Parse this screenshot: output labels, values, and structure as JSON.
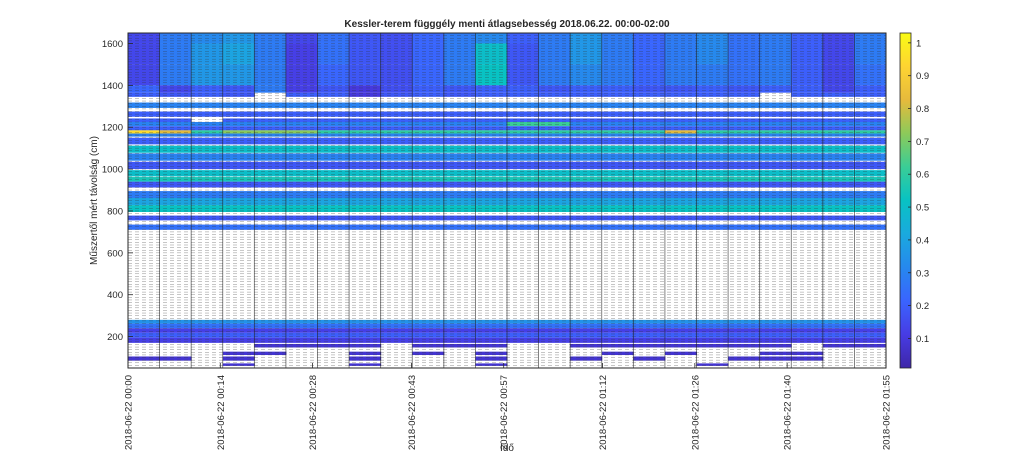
{
  "chart_data": {
    "type": "heatmap",
    "title": "Kessler-terem függgély menti átlagsebesség 2018.06.22. 00:00-02:00",
    "xlabel": "Idő",
    "ylabel": "Műszertől mért távolság (cm)",
    "x_tick_labels": [
      "2018-06-22 00:00",
      "2018-06-22 00:14",
      "2018-06-22 00:28",
      "2018-06-22 00:43",
      "2018-06-22 00:57",
      "2018-06-22 01:12",
      "2018-06-22 01:26",
      "2018-06-22 01:40",
      "2018-06-22 01:55"
    ],
    "x_tick_minutes": [
      0,
      14,
      28,
      43,
      57,
      72,
      86,
      100,
      115
    ],
    "xlim_minutes": [
      0,
      115
    ],
    "y_ticks": [
      200,
      400,
      600,
      800,
      1000,
      1200,
      1400,
      1600
    ],
    "ylim": [
      50,
      1650
    ],
    "colorbar": {
      "ticks": [
        0.1,
        0.2,
        0.3,
        0.4,
        0.5,
        0.6,
        0.7,
        0.8,
        0.9,
        1
      ],
      "range": [
        0.01,
        1.03
      ],
      "colormap": "parula"
    },
    "grid": true,
    "time_columns": 24,
    "rows": [
      {
        "y": [
          1600,
          1650
        ],
        "values": [
          0.14,
          0.28,
          0.32,
          0.36,
          0.28,
          0.14,
          0.25,
          0.18,
          0.16,
          0.22,
          0.28,
          0.32,
          0.2,
          0.28,
          0.36,
          0.28,
          0.22,
          0.28,
          0.32,
          0.25,
          0.28,
          0.2,
          0.14,
          0.28
        ]
      },
      {
        "y": [
          1500,
          1600
        ],
        "values": [
          0.14,
          0.28,
          0.36,
          0.4,
          0.28,
          0.12,
          0.25,
          0.18,
          0.16,
          0.22,
          0.28,
          0.5,
          0.18,
          0.28,
          0.36,
          0.28,
          0.22,
          0.28,
          0.32,
          0.25,
          0.28,
          0.2,
          0.14,
          0.28
        ]
      },
      {
        "y": [
          1400,
          1500
        ],
        "values": [
          0.14,
          0.28,
          0.36,
          0.36,
          0.28,
          0.12,
          0.22,
          0.18,
          0.16,
          0.22,
          0.28,
          0.52,
          0.18,
          0.28,
          0.32,
          0.28,
          0.22,
          0.28,
          0.28,
          0.25,
          0.28,
          0.2,
          0.14,
          0.25
        ]
      },
      {
        "y": [
          1365,
          1400
        ],
        "values": [
          0.22,
          0.14,
          0.2,
          0.18,
          0.28,
          0.12,
          0.18,
          0.1,
          0.16,
          0.2,
          0.18,
          0.2,
          0.2,
          0.18,
          0.2,
          0.2,
          0.18,
          0.18,
          0.2,
          0.18,
          0.2,
          0.2,
          0.14,
          0.2
        ]
      },
      {
        "y": [
          1345,
          1365
        ],
        "values": [
          0.2,
          0.18,
          0.2,
          0.18,
          null,
          0.2,
          0.2,
          0.1,
          0.18,
          0.2,
          0.18,
          0.2,
          0.2,
          0.2,
          0.2,
          0.2,
          0.2,
          0.2,
          0.2,
          0.2,
          null,
          0.2,
          0.2,
          0.2
        ]
      },
      {
        "y": [
          1292,
          1318
        ],
        "values": [
          0.3,
          0.3,
          0.3,
          0.3,
          0.3,
          0.3,
          0.3,
          0.3,
          0.3,
          0.3,
          0.3,
          0.3,
          0.3,
          0.3,
          0.3,
          0.3,
          0.3,
          0.3,
          0.3,
          0.3,
          0.3,
          0.3,
          0.3,
          0.3
        ]
      },
      {
        "y": [
          1250,
          1275
        ],
        "values": [
          0.2,
          0.2,
          0.2,
          0.2,
          0.2,
          0.2,
          0.2,
          0.2,
          0.2,
          0.2,
          0.2,
          0.2,
          0.2,
          0.2,
          0.2,
          0.2,
          0.2,
          0.2,
          0.2,
          0.2,
          0.2,
          0.2,
          0.2,
          0.2
        ]
      },
      {
        "y": [
          1225,
          1242
        ],
        "values": [
          0.2,
          0.2,
          null,
          0.2,
          0.2,
          0.2,
          0.2,
          0.2,
          0.2,
          0.2,
          0.2,
          0.2,
          0.2,
          0.2,
          0.2,
          0.2,
          0.2,
          0.2,
          0.2,
          0.2,
          0.2,
          0.2,
          0.2,
          0.2
        ]
      },
      {
        "y": [
          1205,
          1225
        ],
        "values": [
          0.3,
          0.3,
          0.3,
          0.3,
          0.3,
          0.3,
          0.3,
          0.3,
          0.3,
          0.3,
          0.3,
          0.3,
          0.62,
          0.62,
          0.3,
          0.3,
          0.3,
          0.3,
          0.3,
          0.3,
          0.3,
          0.3,
          0.3,
          0.3
        ]
      },
      {
        "y": [
          1185,
          1205
        ],
        "values": [
          0.2,
          0.2,
          0.2,
          0.2,
          0.2,
          0.2,
          0.2,
          0.2,
          0.2,
          0.2,
          0.2,
          0.2,
          0.2,
          0.2,
          0.2,
          0.2,
          0.2,
          0.2,
          0.2,
          0.2,
          0.2,
          0.2,
          0.2,
          0.2
        ]
      },
      {
        "y": [
          1170,
          1185
        ],
        "values": [
          0.95,
          0.82,
          0.6,
          0.72,
          0.72,
          0.72,
          0.6,
          0.6,
          0.6,
          0.6,
          0.6,
          0.6,
          0.6,
          0.6,
          0.6,
          0.6,
          0.6,
          0.82,
          0.6,
          0.6,
          0.6,
          0.6,
          0.6,
          0.6
        ]
      },
      {
        "y": [
          1155,
          1170
        ],
        "values": [
          0.3,
          0.3,
          0.3,
          0.3,
          0.3,
          0.3,
          0.3,
          0.3,
          0.3,
          0.3,
          0.3,
          0.3,
          0.3,
          0.3,
          0.3,
          0.3,
          0.3,
          0.3,
          0.3,
          0.3,
          0.3,
          0.3,
          0.3,
          0.3
        ]
      },
      {
        "y": [
          1118,
          1150
        ],
        "values": [
          0.2,
          0.2,
          0.2,
          0.2,
          0.2,
          0.2,
          0.2,
          0.2,
          0.2,
          0.2,
          0.2,
          0.2,
          0.2,
          0.2,
          0.2,
          0.2,
          0.2,
          0.2,
          0.2,
          0.2,
          0.2,
          0.2,
          0.2,
          0.2
        ]
      },
      {
        "y": [
          1078,
          1112
        ],
        "values": [
          0.5,
          0.5,
          0.5,
          0.5,
          0.5,
          0.5,
          0.5,
          0.5,
          0.5,
          0.5,
          0.5,
          0.5,
          0.5,
          0.5,
          0.5,
          0.5,
          0.5,
          0.5,
          0.5,
          0.5,
          0.5,
          0.5,
          0.5,
          0.5
        ]
      },
      {
        "y": [
          1040,
          1075
        ],
        "values": [
          0.3,
          0.3,
          0.3,
          0.3,
          0.3,
          0.3,
          0.3,
          0.3,
          0.3,
          0.3,
          0.3,
          0.3,
          0.3,
          0.3,
          0.3,
          0.3,
          0.3,
          0.3,
          0.3,
          0.3,
          0.3,
          0.3,
          0.3,
          0.3
        ]
      },
      {
        "y": [
          1000,
          1035
        ],
        "values": [
          0.18,
          0.18,
          0.18,
          0.18,
          0.18,
          0.18,
          0.18,
          0.18,
          0.18,
          0.18,
          0.18,
          0.18,
          0.18,
          0.18,
          0.18,
          0.18,
          0.18,
          0.18,
          0.18,
          0.18,
          0.18,
          0.18,
          0.18,
          0.18
        ]
      },
      {
        "y": [
          965,
          995
        ],
        "values": [
          0.5,
          0.5,
          0.5,
          0.5,
          0.5,
          0.5,
          0.5,
          0.5,
          0.5,
          0.5,
          0.5,
          0.5,
          0.5,
          0.5,
          0.5,
          0.5,
          0.5,
          0.5,
          0.5,
          0.5,
          0.5,
          0.5,
          0.5,
          0.5
        ]
      },
      {
        "y": [
          940,
          962
        ],
        "values": [
          0.55,
          0.55,
          0.55,
          0.55,
          0.55,
          0.55,
          0.55,
          0.55,
          0.55,
          0.55,
          0.55,
          0.55,
          0.55,
          0.55,
          0.55,
          0.55,
          0.55,
          0.55,
          0.55,
          0.55,
          0.55,
          0.55,
          0.55,
          0.55
        ]
      },
      {
        "y": [
          912,
          940
        ],
        "values": [
          0.18,
          0.18,
          0.18,
          0.18,
          0.18,
          0.18,
          0.18,
          0.18,
          0.18,
          0.18,
          0.18,
          0.18,
          0.18,
          0.18,
          0.18,
          0.18,
          0.18,
          0.18,
          0.18,
          0.18,
          0.18,
          0.18,
          0.18,
          0.18
        ]
      },
      {
        "y": [
          862,
          895
        ],
        "values": [
          0.28,
          0.28,
          0.28,
          0.28,
          0.28,
          0.28,
          0.28,
          0.28,
          0.28,
          0.28,
          0.28,
          0.28,
          0.28,
          0.28,
          0.28,
          0.28,
          0.28,
          0.28,
          0.28,
          0.28,
          0.28,
          0.28,
          0.28,
          0.28
        ]
      },
      {
        "y": [
          828,
          862
        ],
        "values": [
          0.4,
          0.4,
          0.4,
          0.4,
          0.4,
          0.4,
          0.4,
          0.4,
          0.4,
          0.4,
          0.4,
          0.4,
          0.4,
          0.4,
          0.4,
          0.4,
          0.4,
          0.4,
          0.4,
          0.4,
          0.4,
          0.4,
          0.4,
          0.4
        ]
      },
      {
        "y": [
          795,
          828
        ],
        "values": [
          0.52,
          0.52,
          0.52,
          0.52,
          0.52,
          0.52,
          0.52,
          0.52,
          0.52,
          0.52,
          0.52,
          0.52,
          0.52,
          0.52,
          0.52,
          0.52,
          0.52,
          0.52,
          0.52,
          0.52,
          0.52,
          0.52,
          0.52,
          0.52
        ]
      },
      {
        "y": [
          755,
          778
        ],
        "values": [
          0.18,
          0.18,
          0.18,
          0.18,
          0.18,
          0.18,
          0.18,
          0.18,
          0.18,
          0.18,
          0.18,
          0.18,
          0.18,
          0.18,
          0.18,
          0.18,
          0.18,
          0.18,
          0.18,
          0.18,
          0.18,
          0.18,
          0.18,
          0.18
        ]
      },
      {
        "y": [
          710,
          735
        ],
        "values": [
          0.25,
          0.25,
          0.25,
          0.25,
          0.25,
          0.25,
          0.25,
          0.25,
          0.25,
          0.25,
          0.25,
          0.25,
          0.25,
          0.25,
          0.25,
          0.25,
          0.25,
          0.25,
          0.25,
          0.25,
          0.25,
          0.25,
          0.25,
          0.25
        ]
      },
      {
        "y": [
          262,
          280
        ],
        "values": [
          0.35,
          0.35,
          0.35,
          0.35,
          0.35,
          0.35,
          0.35,
          0.35,
          0.35,
          0.35,
          0.35,
          0.35,
          0.35,
          0.35,
          0.35,
          0.35,
          0.35,
          0.35,
          0.35,
          0.35,
          0.35,
          0.35,
          0.35,
          0.35
        ]
      },
      {
        "y": [
          240,
          262
        ],
        "values": [
          0.25,
          0.25,
          0.25,
          0.25,
          0.25,
          0.25,
          0.25,
          0.25,
          0.25,
          0.25,
          0.25,
          0.25,
          0.25,
          0.25,
          0.25,
          0.25,
          0.25,
          0.25,
          0.25,
          0.25,
          0.25,
          0.25,
          0.25,
          0.25
        ]
      },
      {
        "y": [
          218,
          240
        ],
        "values": [
          0.12,
          0.12,
          0.12,
          0.12,
          0.12,
          0.12,
          0.12,
          0.12,
          0.12,
          0.12,
          0.12,
          0.12,
          0.12,
          0.12,
          0.12,
          0.12,
          0.12,
          0.12,
          0.12,
          0.12,
          0.12,
          0.12,
          0.12,
          0.12
        ]
      },
      {
        "y": [
          195,
          218
        ],
        "values": [
          0.2,
          0.2,
          0.2,
          0.2,
          0.2,
          0.2,
          0.2,
          0.2,
          0.2,
          0.2,
          0.2,
          0.2,
          0.2,
          0.2,
          0.2,
          0.2,
          0.2,
          0.2,
          0.2,
          0.2,
          0.2,
          0.2,
          0.2,
          0.2
        ]
      },
      {
        "y": [
          170,
          195
        ],
        "values": [
          0.12,
          0.12,
          0.12,
          0.12,
          0.12,
          0.12,
          0.12,
          0.12,
          0.12,
          0.12,
          0.12,
          0.12,
          0.12,
          0.12,
          0.12,
          0.12,
          0.12,
          0.12,
          0.12,
          0.12,
          0.12,
          0.12,
          0.12,
          0.12
        ]
      },
      {
        "y": [
          148,
          165
        ],
        "values": [
          null,
          null,
          null,
          null,
          0.08,
          0.08,
          0.08,
          0.08,
          null,
          0.08,
          0.08,
          0.08,
          null,
          null,
          0.08,
          0.08,
          0.08,
          0.08,
          0.08,
          0.08,
          0.08,
          null,
          0.08,
          0.08
        ]
      },
      {
        "y": [
          112,
          128
        ],
        "values": [
          null,
          null,
          null,
          0.08,
          0.08,
          null,
          null,
          0.08,
          null,
          0.08,
          null,
          0.08,
          null,
          null,
          null,
          0.08,
          null,
          0.08,
          null,
          null,
          0.08,
          0.08,
          null,
          null
        ]
      },
      {
        "y": [
          85,
          105
        ],
        "values": [
          0.08,
          0.08,
          null,
          0.08,
          null,
          null,
          null,
          0.08,
          null,
          null,
          null,
          0.08,
          null,
          null,
          0.08,
          null,
          0.08,
          null,
          null,
          0.08,
          0.08,
          0.08,
          null,
          null
        ]
      },
      {
        "y": [
          60,
          72
        ],
        "values": [
          null,
          null,
          null,
          0.08,
          null,
          null,
          null,
          0.08,
          null,
          null,
          null,
          0.08,
          null,
          null,
          null,
          null,
          null,
          null,
          0.08,
          null,
          null,
          null,
          null,
          null
        ]
      }
    ]
  }
}
